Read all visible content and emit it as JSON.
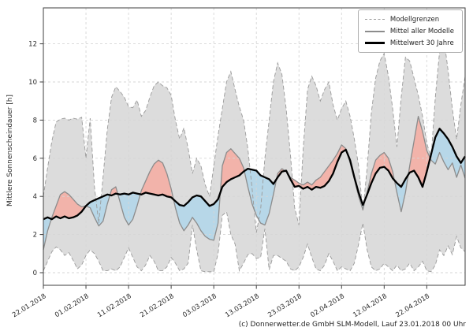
{
  "figure": {
    "footer": "(c) Donnerwetter.de GmbH SLM-Modell, Lauf 23.01.2018 00 Uhr"
  },
  "axes": {
    "y_label": "Mittlere Sonnenscheindauer [h]",
    "y_ticks": [
      0,
      2,
      4,
      6,
      8,
      10,
      12
    ],
    "x_tick_labels": [
      "22.01.2018",
      "01.02.2018",
      "11.02.2018",
      "21.02.2018",
      "03.03.2018",
      "13.03.2018",
      "23.03.2018",
      "02.04.2018",
      "12.04.2018",
      "22.04.2018"
    ],
    "x_tick_day_indices": [
      0,
      10,
      20,
      30,
      40,
      50,
      60,
      70,
      80,
      90
    ]
  },
  "legend": {
    "items": [
      {
        "label": "Modellgrenzen",
        "swatch": "dashed-gray"
      },
      {
        "label": "Mittel aller Modelle",
        "swatch": "solid-gray"
      },
      {
        "label": "Mittelwert 30 Jahre",
        "swatch": "solid-black"
      }
    ]
  },
  "colors": {
    "band_fill": "#dcdcdc",
    "band_edge": "#9a9a9a",
    "above_fill": "#f2b3aa",
    "below_fill": "#b7d7e8",
    "model_mean_line": "#8c8c8c",
    "climate_mean_line": "#000000",
    "grid": "#d6d6d6",
    "spine": "#3f3f3f",
    "text": "#2b2b2b"
  },
  "chart_data": {
    "type": "line",
    "title": "",
    "xlabel": "",
    "ylabel": "Mittlere Sonnenscheindauer [h]",
    "x_start_date": "22.01.2018",
    "x_step_days": 1,
    "n_points": 100,
    "ylim": [
      -0.7,
      13.9
    ],
    "grid": true,
    "legend_position": "upper right",
    "fill_rule": "red where Mittel aller Modelle > Mittelwert 30 Jahre, blue where below; gray band between Modellgrenzen",
    "series": [
      {
        "name": "Modellgrenzen (obere Grenze)",
        "role": "band-upper",
        "style": "dashed-gray",
        "values": [
          4.0,
          5.5,
          6.9,
          7.9,
          8.05,
          8.1,
          8.0,
          8.1,
          8.05,
          8.15,
          6.0,
          8.1,
          4.5,
          2.6,
          5.0,
          7.5,
          9.2,
          9.75,
          9.5,
          9.2,
          8.7,
          8.65,
          9.05,
          8.2,
          8.5,
          9.2,
          9.8,
          10.0,
          9.8,
          9.7,
          9.3,
          8.0,
          7.0,
          7.6,
          6.5,
          5.2,
          6.0,
          5.6,
          4.6,
          4.0,
          5.6,
          7.2,
          8.6,
          10.0,
          10.55,
          9.6,
          8.7,
          8.0,
          6.5,
          4.4,
          2.1,
          3.3,
          6.0,
          8.0,
          10.0,
          11.0,
          10.4,
          8.6,
          6.2,
          3.4,
          2.5,
          6.5,
          9.6,
          10.3,
          9.8,
          9.0,
          9.6,
          10.0,
          8.8,
          8.0,
          8.6,
          9.0,
          8.2,
          7.0,
          5.6,
          3.2,
          5.5,
          8.4,
          10.2,
          11.1,
          11.5,
          10.3,
          8.6,
          6.6,
          9.2,
          11.3,
          11.1,
          10.2,
          9.3,
          8.2,
          6.8,
          6.0,
          9.2,
          11.6,
          12.3,
          10.6,
          8.6,
          7.0,
          8.8,
          10.3
        ]
      },
      {
        "name": "Modellgrenzen (untere Grenze)",
        "role": "band-lower",
        "style": "dashed-gray",
        "values": [
          0.1,
          0.6,
          1.1,
          1.35,
          1.2,
          0.9,
          1.05,
          0.65,
          0.2,
          0.4,
          0.9,
          1.2,
          1.0,
          0.6,
          0.1,
          0.1,
          0.2,
          0.1,
          0.3,
          0.8,
          1.3,
          0.8,
          0.3,
          0.1,
          0.4,
          0.9,
          0.6,
          0.1,
          0.1,
          0.3,
          0.8,
          0.5,
          0.1,
          0.2,
          0.5,
          2.5,
          1.2,
          0.1,
          0.05,
          0.05,
          0.05,
          1.0,
          3.0,
          3.2,
          2.0,
          1.5,
          0.1,
          0.5,
          0.95,
          1.0,
          0.75,
          0.8,
          2.3,
          0.15,
          0.9,
          0.9,
          0.75,
          0.6,
          0.2,
          0.1,
          0.3,
          0.8,
          1.5,
          0.8,
          0.2,
          0.1,
          0.4,
          1.0,
          0.6,
          0.1,
          0.3,
          0.2,
          0.1,
          0.5,
          1.5,
          2.6,
          1.2,
          0.3,
          0.1,
          0.2,
          0.5,
          0.3,
          0.1,
          0.4,
          0.1,
          0.2,
          0.5,
          0.1,
          0.3,
          0.6,
          0.1,
          0.05,
          0.4,
          1.2,
          0.9,
          1.4,
          0.95,
          1.9,
          1.3,
          1.1
        ]
      },
      {
        "name": "Mittel aller Modelle",
        "role": "model-mean",
        "style": "solid-gray",
        "values": [
          1.2,
          2.2,
          2.9,
          3.5,
          4.1,
          4.25,
          4.1,
          3.85,
          3.6,
          3.45,
          3.5,
          3.4,
          2.9,
          2.45,
          2.7,
          3.6,
          4.35,
          4.5,
          3.7,
          2.9,
          2.5,
          2.8,
          3.5,
          4.3,
          4.8,
          5.3,
          5.7,
          5.9,
          5.75,
          5.2,
          4.4,
          3.4,
          2.6,
          2.2,
          2.5,
          2.9,
          2.6,
          2.2,
          1.9,
          1.75,
          1.7,
          2.6,
          5.6,
          6.3,
          6.5,
          6.25,
          6.0,
          5.5,
          4.5,
          3.6,
          3.0,
          2.6,
          2.5,
          3.1,
          4.1,
          5.2,
          5.45,
          5.3,
          5.0,
          4.85,
          4.7,
          4.6,
          4.75,
          4.6,
          4.85,
          5.0,
          5.3,
          5.6,
          5.9,
          6.25,
          6.7,
          6.5,
          5.75,
          4.9,
          4.0,
          3.3,
          4.2,
          5.2,
          5.9,
          6.15,
          6.3,
          6.0,
          5.3,
          4.2,
          3.2,
          4.2,
          5.6,
          6.9,
          8.2,
          7.4,
          6.4,
          5.9,
          5.7,
          6.3,
          5.8,
          5.4,
          5.75,
          5.0,
          5.65,
          4.95
        ]
      },
      {
        "name": "Mittelwert 30 Jahre",
        "role": "climate-mean",
        "style": "solid-black-thick",
        "values": [
          2.8,
          2.9,
          2.8,
          2.95,
          2.85,
          2.95,
          2.85,
          2.9,
          3.0,
          3.2,
          3.5,
          3.7,
          3.8,
          3.9,
          4.0,
          4.1,
          4.05,
          4.15,
          4.1,
          4.15,
          4.1,
          4.2,
          4.15,
          4.1,
          4.2,
          4.15,
          4.1,
          4.05,
          4.1,
          4.0,
          3.95,
          3.75,
          3.55,
          3.5,
          3.7,
          3.95,
          4.05,
          4.0,
          3.75,
          3.5,
          3.6,
          3.85,
          4.5,
          4.75,
          4.9,
          5.0,
          5.1,
          5.3,
          5.45,
          5.4,
          5.35,
          5.1,
          5.0,
          4.9,
          4.65,
          5.0,
          5.3,
          5.35,
          4.9,
          4.5,
          4.55,
          4.4,
          4.5,
          4.35,
          4.5,
          4.45,
          4.55,
          4.8,
          5.2,
          5.8,
          6.3,
          6.45,
          5.9,
          5.0,
          4.2,
          3.55,
          4.1,
          4.7,
          5.2,
          5.5,
          5.55,
          5.35,
          4.95,
          4.7,
          4.5,
          4.9,
          5.25,
          5.35,
          5.0,
          4.5,
          5.3,
          6.2,
          7.1,
          7.55,
          7.3,
          7.0,
          6.6,
          6.1,
          5.75,
          6.1
        ]
      }
    ]
  }
}
